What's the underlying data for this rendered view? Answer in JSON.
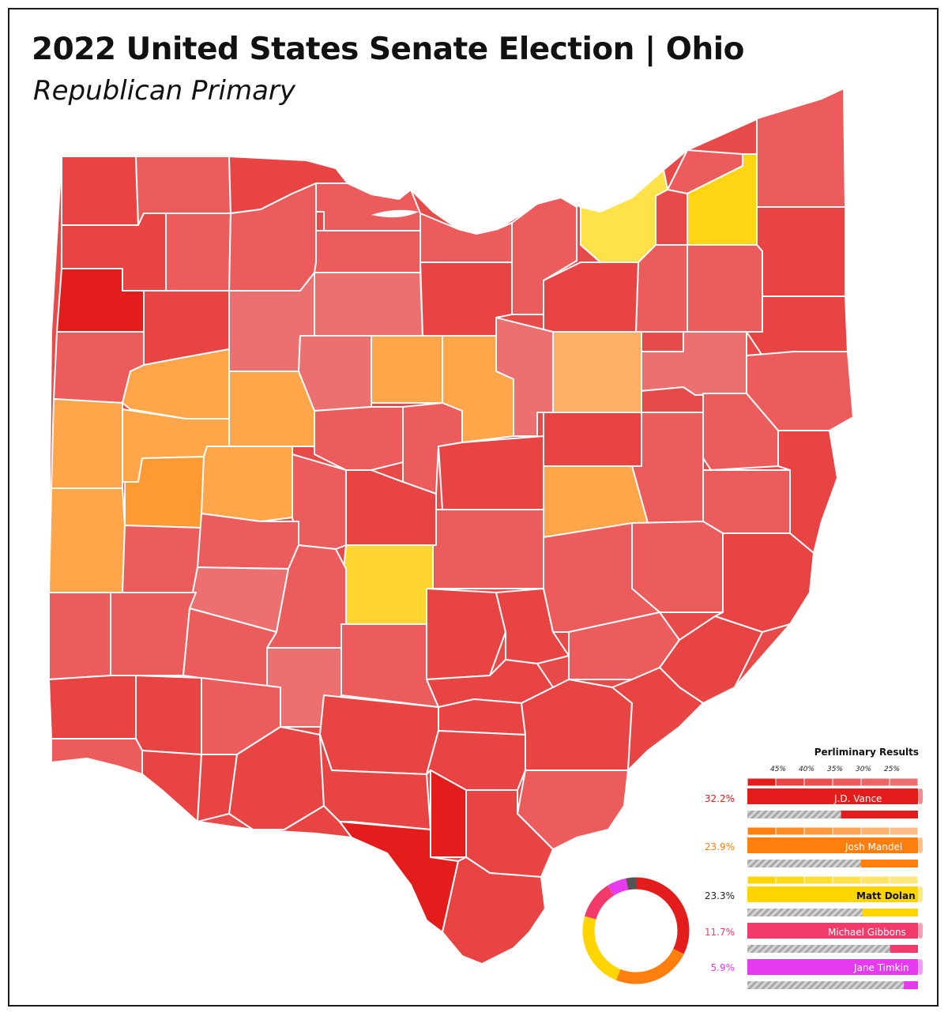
{
  "title": "2022 United States Senate Election | Ohio",
  "subtitle": "Republican Primary",
  "colors": {
    "vance_dark": "#e31c1c",
    "vance_mid": "#e84444",
    "vance_light": "#ec5c5c",
    "vance_lighter": "#ec7070",
    "mandel_dark": "#ff9932",
    "mandel_mid": "#ffa54a",
    "mandel_light": "#ffb066",
    "dolan_dark": "#ffd514",
    "dolan_mid": "#ffdc2e",
    "dolan_light": "#ffe24a",
    "gibbons": "#f23b6a",
    "timkin": "#e63aef",
    "other": "#555555",
    "border": "#ffffff"
  },
  "legend": {
    "title": "Perliminary Results",
    "ticks": [
      "45%",
      "40%",
      "35%",
      "30%",
      "25%"
    ],
    "candidates": [
      {
        "name": "J.D. Vance",
        "pct_label": "32.2%",
        "share": 32.2,
        "color": "#e31c1c",
        "pct_color": "#e31c1c",
        "label_color": "#ffffff"
      },
      {
        "name": "Josh Mandel",
        "pct_label": "23.9%",
        "share": 23.9,
        "color": "#ff7f0e",
        "pct_color": "#ff7f0e",
        "label_color": "#ffffff"
      },
      {
        "name": "Matt Dolan",
        "pct_label": "23.3%",
        "share": 23.3,
        "color": "#ffd500",
        "pct_color": "#222222",
        "label_color": "#111111"
      },
      {
        "name": "Michael Gibbons",
        "pct_label": "11.7%",
        "share": 11.7,
        "color": "#f23b6a",
        "pct_color": "#f23b6a",
        "label_color": "#ffffff"
      },
      {
        "name": "Jane Timkin",
        "pct_label": "5.9%",
        "share": 5.9,
        "color": "#e63aef",
        "pct_color": "#e63aef",
        "label_color": "#ffffff"
      }
    ]
  },
  "donut": {
    "slices": [
      {
        "name": "J.D. Vance",
        "value": 32.2,
        "color": "#e31c1c"
      },
      {
        "name": "Josh Mandel",
        "value": 23.9,
        "color": "#ff7f0e"
      },
      {
        "name": "Matt Dolan",
        "value": 23.3,
        "color": "#ffd500"
      },
      {
        "name": "Michael Gibbons",
        "value": 11.7,
        "color": "#f23b6a"
      },
      {
        "name": "Jane Timkin",
        "value": 5.9,
        "color": "#e63aef"
      },
      {
        "name": "Other",
        "value": 3.0,
        "color": "#555555"
      }
    ]
  }
}
